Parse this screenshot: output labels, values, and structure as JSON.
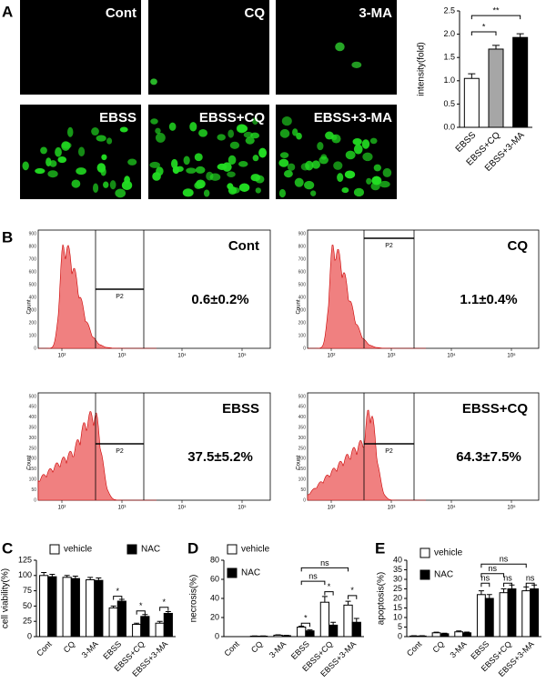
{
  "panel_labels": [
    "A",
    "B",
    "C",
    "D",
    "E"
  ],
  "micrographs": [
    "Cont",
    "CQ",
    "3-MA",
    "EBSS",
    "EBSS+CQ",
    "EBSS+3-MA"
  ],
  "flow_panels": [
    {
      "label": "Cont",
      "gate": "P2",
      "percent": "0.6±0.2%",
      "y_axis_label": "Count",
      "yticks": [
        0,
        100,
        200,
        300,
        400,
        500,
        600,
        700,
        800,
        900
      ],
      "xticks": [
        "10²",
        "10³",
        "10⁴",
        "10⁵"
      ]
    },
    {
      "label": "CQ",
      "gate": "P2",
      "percent": "1.1±0.4%",
      "y_axis_label": "Count",
      "yticks": [
        0,
        100,
        200,
        300,
        400,
        500,
        600,
        700,
        800,
        900
      ],
      "xticks": [
        "10²",
        "10³",
        "10⁴",
        "10⁵"
      ]
    },
    {
      "label": "EBSS",
      "gate": "P2",
      "percent": "37.5±5.2%",
      "y_axis_label": "Count",
      "yticks": [
        0,
        50,
        100,
        150,
        200,
        250,
        300,
        350,
        400,
        450,
        500
      ],
      "xticks": [
        "10²",
        "10³",
        "10⁴",
        "10⁵"
      ]
    },
    {
      "label": "EBSS+CQ",
      "gate": "P2",
      "percent": "64.3±7.5%",
      "y_axis_label": "Count",
      "yticks": [
        0,
        50,
        100,
        150,
        200,
        250,
        300,
        350,
        400,
        450,
        500
      ],
      "xticks": [
        "10²",
        "10³",
        "10⁴",
        "10⁵"
      ]
    }
  ],
  "chart_data": [
    {
      "type": "bar",
      "y_label": "intensity(fold)",
      "categories": [
        "EBSS",
        "EBSS+CQ",
        "EBSS+3-MA"
      ],
      "values": [
        1.05,
        1.68,
        1.93
      ],
      "errors": [
        0.1,
        0.08,
        0.08
      ],
      "colors": [
        "#ffffff",
        "#a6a6a6",
        "#000000"
      ],
      "ylim": [
        0,
        2.5
      ],
      "yticks": [
        {
          "value": 0,
          "label": "0.0"
        },
        0.5,
        {
          "value": 1,
          "label": "1.0"
        },
        1.5,
        {
          "value": 2,
          "label": "2.0"
        },
        2.5
      ],
      "annotations": [
        "*",
        "**"
      ]
    },
    {
      "type": "grouped_bar",
      "y_label": "cell viability(%)",
      "categories": [
        "Cont",
        "CQ",
        "3-MA",
        "EBSS",
        "EBSS+CQ",
        "EBSS+3-MA"
      ],
      "series": [
        {
          "name": "vehicle",
          "color": "#ffffff",
          "values": [
            100,
            97,
            93,
            47,
            20,
            22
          ],
          "errors": [
            5,
            3,
            4,
            3,
            2,
            3
          ]
        },
        {
          "name": "NAC",
          "color": "#000000",
          "values": [
            98,
            95,
            92,
            58,
            33,
            38
          ],
          "errors": [
            4,
            4,
            4,
            3,
            3,
            3
          ]
        }
      ],
      "ylim": [
        0,
        125
      ],
      "yticks": [
        0,
        25,
        50,
        75,
        100,
        125
      ],
      "annotations": [
        "*",
        "*",
        "*"
      ]
    },
    {
      "type": "grouped_bar",
      "y_label": "necrosis(%)",
      "categories": [
        "Cont",
        "CQ",
        "3-MA",
        "EBSS",
        "EBSS+CQ",
        "EBSS+3-MA"
      ],
      "series": [
        {
          "name": "vehicle",
          "color": "#ffffff",
          "values": [
            0,
            0.5,
            1.5,
            10,
            36,
            33
          ],
          "errors": [
            0,
            0.2,
            0.4,
            1,
            6,
            4
          ]
        },
        {
          "name": "NAC",
          "color": "#000000",
          "values": [
            0,
            0.5,
            1,
            6,
            12,
            15
          ],
          "errors": [
            0,
            0.2,
            0.3,
            1,
            3,
            4
          ]
        }
      ],
      "ylim": [
        0,
        80
      ],
      "yticks": [
        0,
        20,
        40,
        60,
        80
      ],
      "annotations": [
        "*",
        "*",
        "*",
        "ns",
        "ns"
      ]
    },
    {
      "type": "grouped_bar",
      "y_label": "apoptosis(%)",
      "categories": [
        "Cont",
        "CQ",
        "3-MA",
        "EBSS",
        "EBSS+CQ",
        "EBSS+3-MA"
      ],
      "series": [
        {
          "name": "vehicle",
          "color": "#ffffff",
          "values": [
            0.3,
            2,
            2.5,
            22,
            23,
            24
          ],
          "errors": [
            0.2,
            0.3,
            0.5,
            2,
            2,
            2
          ]
        },
        {
          "name": "NAC",
          "color": "#000000",
          "values": [
            0.3,
            1.5,
            2,
            20,
            25,
            25
          ],
          "errors": [
            0.2,
            0.3,
            0.4,
            2,
            2,
            2
          ]
        }
      ],
      "ylim": [
        0,
        40
      ],
      "yticks": [
        0,
        5,
        10,
        15,
        20,
        25,
        30,
        35,
        40
      ],
      "annotations": [
        "ns",
        "ns",
        "ns",
        "ns",
        "ns"
      ]
    }
  ]
}
